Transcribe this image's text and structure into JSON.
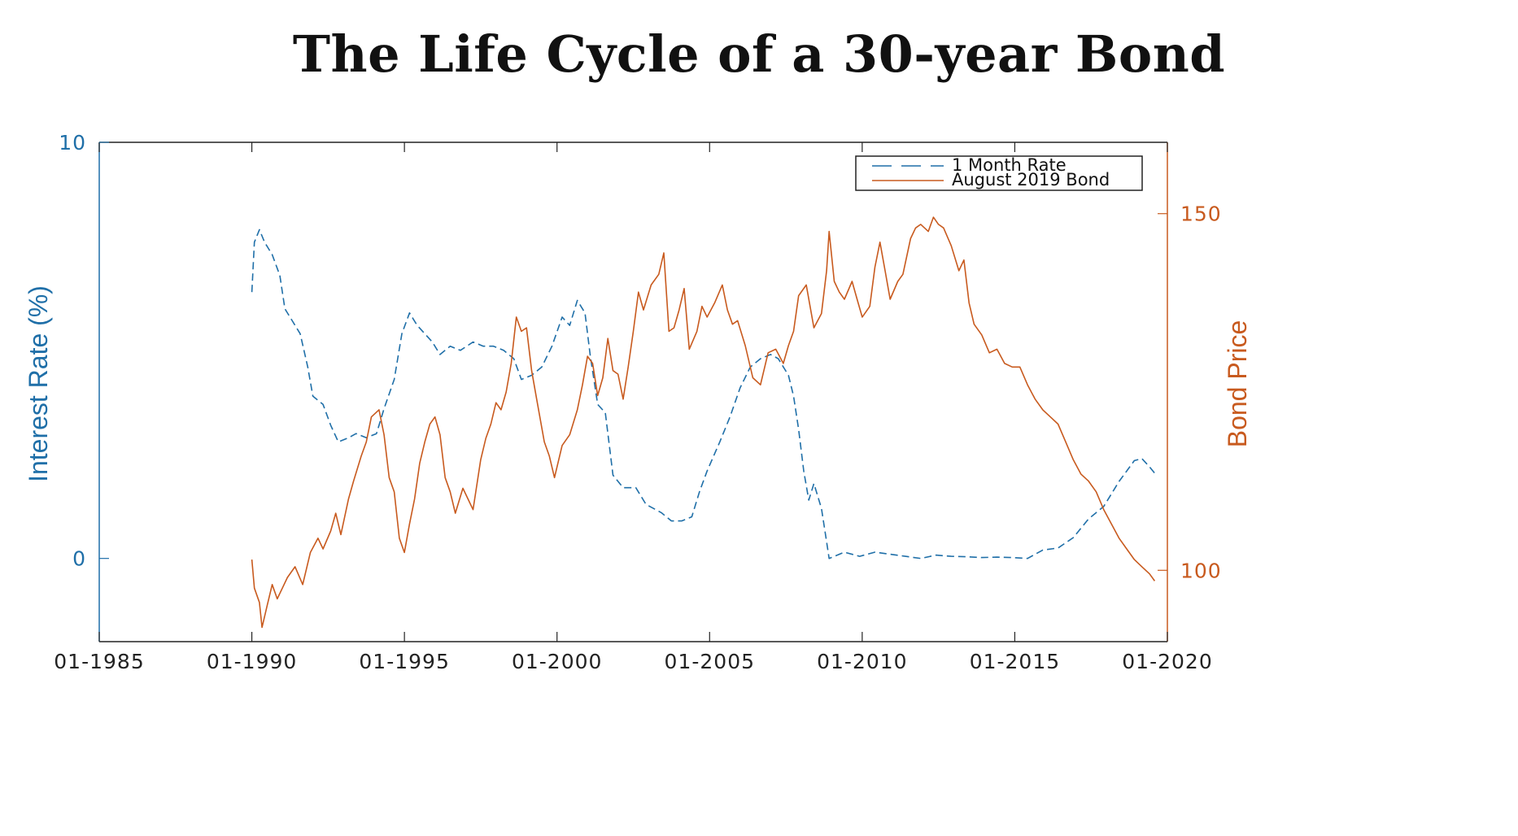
{
  "chart_data": {
    "type": "line",
    "title": "The Life Cycle of a 30-year Bond",
    "xlabel": "",
    "ylabel_left": "Interest Rate (%)",
    "ylabel_right": "Bond Price",
    "x_range": [
      "1985-01",
      "2020-01"
    ],
    "x_ticks": [
      "01-1985",
      "01-1990",
      "01-1995",
      "01-2000",
      "01-2005",
      "01-2010",
      "01-2015",
      "01-2020"
    ],
    "y_left_range": [
      -2,
      10
    ],
    "y_left_ticks": [
      "0",
      "10"
    ],
    "y_right_range": [
      90,
      160
    ],
    "y_right_ticks": [
      "100",
      "150"
    ],
    "grid": false,
    "legend_position": "top-right",
    "colors": {
      "rate": "#1f6fa8",
      "bond": "#c85a1e"
    },
    "series": [
      {
        "name": "1 Month Rate",
        "axis": "left",
        "style": "dashed",
        "points": [
          [
            "1990-01",
            6.4
          ],
          [
            "1990-02",
            7.6
          ],
          [
            "1990-04",
            7.9
          ],
          [
            "1990-06",
            7.6
          ],
          [
            "1990-09",
            7.3
          ],
          [
            "1990-12",
            6.8
          ],
          [
            "1991-02",
            6.0
          ],
          [
            "1991-05",
            5.7
          ],
          [
            "1991-08",
            5.4
          ],
          [
            "1991-11",
            4.6
          ],
          [
            "1992-01",
            3.9
          ],
          [
            "1992-05",
            3.7
          ],
          [
            "1992-08",
            3.2
          ],
          [
            "1992-11",
            2.8
          ],
          [
            "1993-03",
            2.9
          ],
          [
            "1993-06",
            3.0
          ],
          [
            "1993-10",
            2.9
          ],
          [
            "1994-02",
            3.0
          ],
          [
            "1994-05",
            3.6
          ],
          [
            "1994-09",
            4.3
          ],
          [
            "1994-12",
            5.4
          ],
          [
            "1995-03",
            5.9
          ],
          [
            "1995-06",
            5.6
          ],
          [
            "1995-09",
            5.4
          ],
          [
            "1995-12",
            5.2
          ],
          [
            "1996-03",
            4.9
          ],
          [
            "1996-07",
            5.1
          ],
          [
            "1996-11",
            5.0
          ],
          [
            "1997-04",
            5.2
          ],
          [
            "1997-08",
            5.1
          ],
          [
            "1997-12",
            5.1
          ],
          [
            "1998-04",
            5.0
          ],
          [
            "1998-08",
            4.8
          ],
          [
            "1998-11",
            4.3
          ],
          [
            "1999-03",
            4.4
          ],
          [
            "1999-07",
            4.6
          ],
          [
            "1999-11",
            5.1
          ],
          [
            "2000-03",
            5.8
          ],
          [
            "2000-06",
            5.6
          ],
          [
            "2000-09",
            6.2
          ],
          [
            "2000-12",
            5.9
          ],
          [
            "2001-02",
            4.9
          ],
          [
            "2001-05",
            3.7
          ],
          [
            "2001-08",
            3.5
          ],
          [
            "2001-11",
            2.0
          ],
          [
            "2002-03",
            1.7
          ],
          [
            "2002-08",
            1.7
          ],
          [
            "2002-12",
            1.3
          ],
          [
            "2003-06",
            1.1
          ],
          [
            "2003-10",
            0.9
          ],
          [
            "2004-02",
            0.9
          ],
          [
            "2004-06",
            1.0
          ],
          [
            "2004-09",
            1.6
          ],
          [
            "2004-12",
            2.1
          ],
          [
            "2005-05",
            2.8
          ],
          [
            "2005-09",
            3.4
          ],
          [
            "2006-01",
            4.1
          ],
          [
            "2006-05",
            4.6
          ],
          [
            "2006-09",
            4.8
          ],
          [
            "2007-01",
            4.9
          ],
          [
            "2007-04",
            4.8
          ],
          [
            "2007-08",
            4.4
          ],
          [
            "2007-10",
            3.9
          ],
          [
            "2007-12",
            3.1
          ],
          [
            "2008-02",
            2.1
          ],
          [
            "2008-04",
            1.4
          ],
          [
            "2008-06",
            1.8
          ],
          [
            "2008-09",
            1.2
          ],
          [
            "2008-11",
            0.4
          ],
          [
            "2008-12",
            0.0
          ],
          [
            "2009-06",
            0.15
          ],
          [
            "2009-12",
            0.05
          ],
          [
            "2010-06",
            0.15
          ],
          [
            "2010-12",
            0.1
          ],
          [
            "2011-06",
            0.05
          ],
          [
            "2011-12",
            0.0
          ],
          [
            "2012-06",
            0.08
          ],
          [
            "2012-12",
            0.05
          ],
          [
            "2013-06",
            0.04
          ],
          [
            "2013-12",
            0.02
          ],
          [
            "2014-06",
            0.03
          ],
          [
            "2014-12",
            0.02
          ],
          [
            "2015-06",
            0.0
          ],
          [
            "2015-12",
            0.2
          ],
          [
            "2016-06",
            0.25
          ],
          [
            "2016-12",
            0.5
          ],
          [
            "2017-06",
            0.95
          ],
          [
            "2017-12",
            1.25
          ],
          [
            "2018-06",
            1.85
          ],
          [
            "2018-12",
            2.35
          ],
          [
            "2019-03",
            2.4
          ],
          [
            "2019-06",
            2.2
          ],
          [
            "2019-08",
            2.05
          ]
        ]
      },
      {
        "name": "August 2019 Bond",
        "axis": "right",
        "style": "solid",
        "points": [
          [
            "1990-01",
            101.5
          ],
          [
            "1990-02",
            97.5
          ],
          [
            "1990-04",
            95.5
          ],
          [
            "1990-05",
            92.0
          ],
          [
            "1990-07",
            95.0
          ],
          [
            "1990-09",
            98.0
          ],
          [
            "1990-11",
            96.0
          ],
          [
            "1991-01",
            97.5
          ],
          [
            "1991-03",
            99.0
          ],
          [
            "1991-06",
            100.5
          ],
          [
            "1991-09",
            98.0
          ],
          [
            "1991-12",
            102.5
          ],
          [
            "1992-03",
            104.5
          ],
          [
            "1992-05",
            103.0
          ],
          [
            "1992-08",
            105.5
          ],
          [
            "1992-10",
            108.0
          ],
          [
            "1992-12",
            105.0
          ],
          [
            "1993-03",
            110.0
          ],
          [
            "1993-05",
            112.5
          ],
          [
            "1993-08",
            116.0
          ],
          [
            "1993-10",
            118.0
          ],
          [
            "1993-12",
            121.5
          ],
          [
            "1994-03",
            122.5
          ],
          [
            "1994-05",
            119.0
          ],
          [
            "1994-07",
            113.0
          ],
          [
            "1994-09",
            111.0
          ],
          [
            "1994-11",
            104.5
          ],
          [
            "1995-01",
            102.5
          ],
          [
            "1995-03",
            106.5
          ],
          [
            "1995-05",
            110.0
          ],
          [
            "1995-07",
            115.0
          ],
          [
            "1995-09",
            118.0
          ],
          [
            "1995-11",
            120.5
          ],
          [
            "1996-01",
            121.5
          ],
          [
            "1996-03",
            119.0
          ],
          [
            "1996-05",
            113.0
          ],
          [
            "1996-07",
            111.0
          ],
          [
            "1996-09",
            108.0
          ],
          [
            "1996-12",
            111.5
          ],
          [
            "1997-02",
            110.0
          ],
          [
            "1997-04",
            108.5
          ],
          [
            "1997-07",
            115.5
          ],
          [
            "1997-09",
            118.5
          ],
          [
            "1997-11",
            120.5
          ],
          [
            "1998-01",
            123.5
          ],
          [
            "1998-03",
            122.5
          ],
          [
            "1998-05",
            125.0
          ],
          [
            "1998-07",
            129.0
          ],
          [
            "1998-09",
            135.5
          ],
          [
            "1998-11",
            133.5
          ],
          [
            "1999-01",
            134.0
          ],
          [
            "1999-03",
            128.0
          ],
          [
            "1999-05",
            124.0
          ],
          [
            "1999-08",
            118.0
          ],
          [
            "1999-10",
            116.0
          ],
          [
            "1999-12",
            113.0
          ],
          [
            "2000-03",
            117.5
          ],
          [
            "2000-06",
            119.0
          ],
          [
            "2000-09",
            122.5
          ],
          [
            "2000-11",
            126.0
          ],
          [
            "2001-01",
            130.0
          ],
          [
            "2001-03",
            129.0
          ],
          [
            "2001-05",
            124.5
          ],
          [
            "2001-07",
            127.0
          ],
          [
            "2001-09",
            132.5
          ],
          [
            "2001-11",
            128.0
          ],
          [
            "2002-01",
            127.5
          ],
          [
            "2002-03",
            124.0
          ],
          [
            "2002-05",
            128.5
          ],
          [
            "2002-07",
            133.5
          ],
          [
            "2002-09",
            139.0
          ],
          [
            "2002-11",
            136.5
          ],
          [
            "2003-02",
            140.0
          ],
          [
            "2003-05",
            141.5
          ],
          [
            "2003-07",
            144.5
          ],
          [
            "2003-09",
            133.5
          ],
          [
            "2003-11",
            134.0
          ],
          [
            "2004-01",
            136.5
          ],
          [
            "2004-03",
            139.5
          ],
          [
            "2004-05",
            131.0
          ],
          [
            "2004-08",
            133.5
          ],
          [
            "2004-10",
            137.0
          ],
          [
            "2004-12",
            135.5
          ],
          [
            "2005-03",
            137.5
          ],
          [
            "2005-06",
            140.0
          ],
          [
            "2005-08",
            136.5
          ],
          [
            "2005-10",
            134.5
          ],
          [
            "2005-12",
            135.0
          ],
          [
            "2006-03",
            131.5
          ],
          [
            "2006-06",
            127.0
          ],
          [
            "2006-09",
            126.0
          ],
          [
            "2006-12",
            130.5
          ],
          [
            "2007-03",
            131.0
          ],
          [
            "2007-06",
            129.0
          ],
          [
            "2007-08",
            131.5
          ],
          [
            "2007-10",
            133.5
          ],
          [
            "2007-12",
            138.5
          ],
          [
            "2008-03",
            140.0
          ],
          [
            "2008-06",
            134.0
          ],
          [
            "2008-09",
            136.0
          ],
          [
            "2008-11",
            142.0
          ],
          [
            "2008-12",
            147.5
          ],
          [
            "2009-02",
            140.5
          ],
          [
            "2009-04",
            139.0
          ],
          [
            "2009-06",
            138.0
          ],
          [
            "2009-09",
            140.5
          ],
          [
            "2009-11",
            138.0
          ],
          [
            "2010-01",
            135.5
          ],
          [
            "2010-04",
            137.0
          ],
          [
            "2010-06",
            142.5
          ],
          [
            "2010-08",
            146.0
          ],
          [
            "2010-10",
            142.0
          ],
          [
            "2010-12",
            138.0
          ],
          [
            "2011-03",
            140.5
          ],
          [
            "2011-05",
            141.5
          ],
          [
            "2011-08",
            146.5
          ],
          [
            "2011-10",
            148.0
          ],
          [
            "2011-12",
            148.5
          ],
          [
            "2012-03",
            147.5
          ],
          [
            "2012-05",
            149.5
          ],
          [
            "2012-07",
            148.5
          ],
          [
            "2012-09",
            148.0
          ],
          [
            "2012-12",
            145.5
          ],
          [
            "2013-03",
            142.0
          ],
          [
            "2013-05",
            143.5
          ],
          [
            "2013-07",
            137.5
          ],
          [
            "2013-09",
            134.5
          ],
          [
            "2013-12",
            133.0
          ],
          [
            "2014-03",
            130.5
          ],
          [
            "2014-06",
            131.0
          ],
          [
            "2014-09",
            129.0
          ],
          [
            "2014-12",
            128.5
          ],
          [
            "2015-03",
            128.5
          ],
          [
            "2015-06",
            126.0
          ],
          [
            "2015-09",
            124.0
          ],
          [
            "2015-12",
            122.5
          ],
          [
            "2016-03",
            121.5
          ],
          [
            "2016-06",
            120.5
          ],
          [
            "2016-09",
            118.0
          ],
          [
            "2016-12",
            115.5
          ],
          [
            "2017-03",
            113.5
          ],
          [
            "2017-06",
            112.5
          ],
          [
            "2017-09",
            111.0
          ],
          [
            "2017-12",
            108.5
          ],
          [
            "2018-03",
            106.5
          ],
          [
            "2018-06",
            104.5
          ],
          [
            "2018-09",
            103.0
          ],
          [
            "2018-12",
            101.5
          ],
          [
            "2019-03",
            100.5
          ],
          [
            "2019-06",
            99.5
          ],
          [
            "2019-08",
            98.5
          ]
        ]
      }
    ]
  }
}
